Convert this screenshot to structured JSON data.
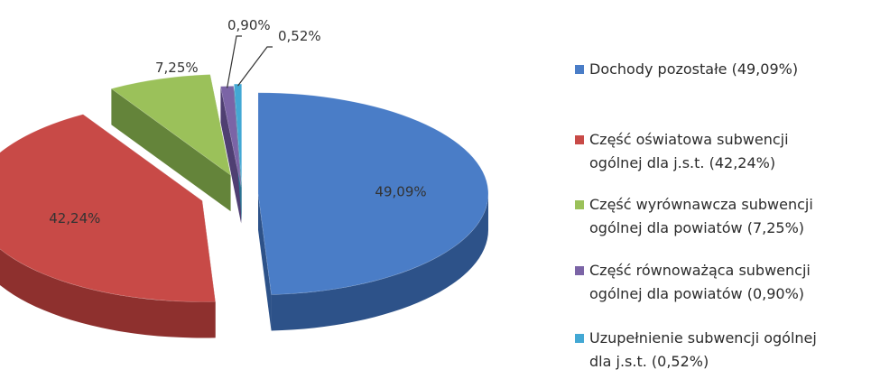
{
  "chart_data": {
    "type": "pie",
    "title": "",
    "legend_position": "right",
    "slices": [
      {
        "name": "Dochody pozostałe",
        "legend_lines": [
          "Dochody pozostałe (49,09%)"
        ],
        "value": 49.09,
        "label": "49,09%",
        "color": "#4a7dc7",
        "side_color": "#2d5289",
        "exploded": true
      },
      {
        "name": "Część oświatowa subwencji ogólnej dla j.s.t.",
        "legend_lines": [
          "Część oświatowa subwencji",
          "ogólnej dla j.s.t. (42,24%)"
        ],
        "value": 42.24,
        "label": "42,24%",
        "color": "#c84a47",
        "side_color": "#8e302e",
        "exploded": true
      },
      {
        "name": "Część wyrównawcza subwencji ogólnej dla powiatów",
        "legend_lines": [
          "Część wyrównawcza subwencji",
          "ogólnej dla powiatów (7,25%)"
        ],
        "value": 7.25,
        "label": "7,25%",
        "color": "#9bc15a",
        "side_color": "#64843a",
        "exploded": true
      },
      {
        "name": "Część równoważąca subwencji ogólnej dla powiatów",
        "legend_lines": [
          "Część równoważąca subwencji",
          "ogólnej dla powiatów (0,90%)"
        ],
        "value": 0.9,
        "label": "0,90%",
        "color": "#7b64a6",
        "side_color": "#4f3f72",
        "exploded": true
      },
      {
        "name": "Uzupełnienie subwencji ogólnej dla j.s.t.",
        "legend_lines": [
          "Uzupełnienie subwencji ogólnej",
          "dla j.s.t. (0,52%)"
        ],
        "value": 0.52,
        "label": "0,52%",
        "color": "#43a8d4",
        "side_color": "#2a7392",
        "exploded": true
      }
    ]
  }
}
